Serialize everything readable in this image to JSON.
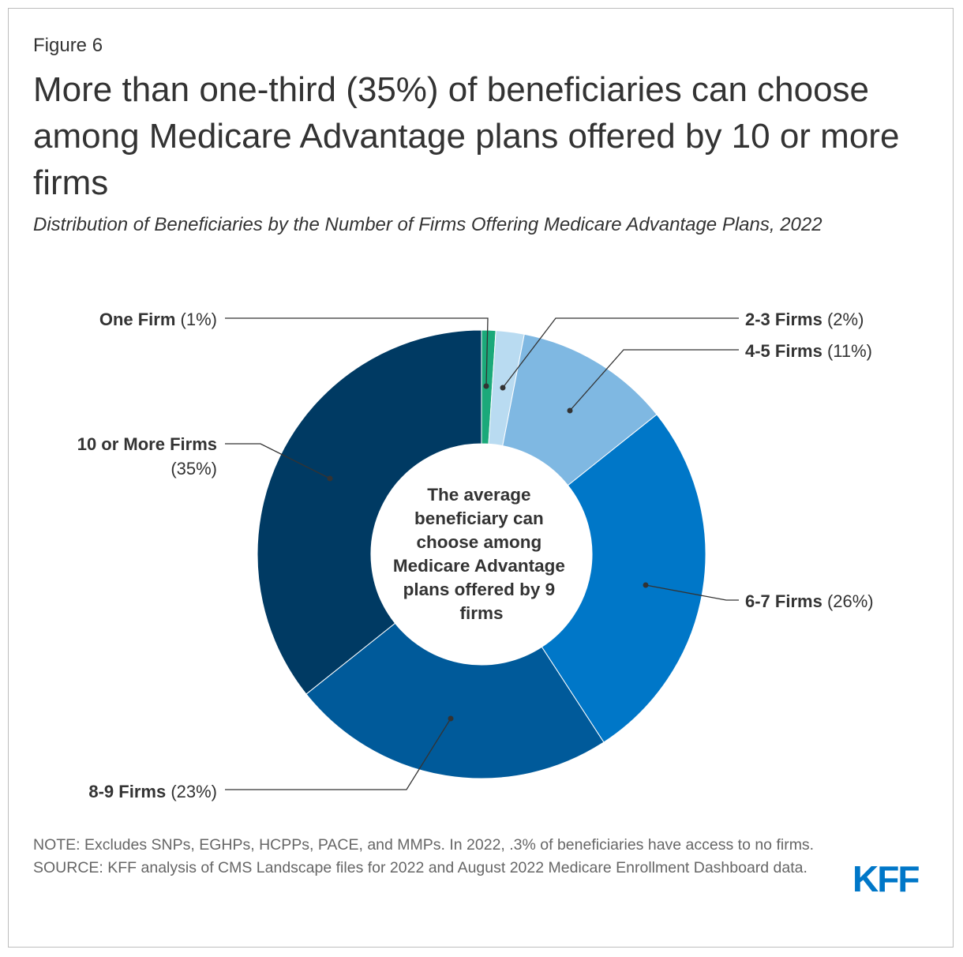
{
  "figure_label": "Figure 6",
  "title": "More than one-third (35%) of beneficiaries can choose among Medicare Advantage plans offered by 10 or more firms",
  "subtitle": "Distribution of Beneficiaries by the Number of Firms Offering Medicare Advantage Plans, 2022",
  "center_text": [
    "The average",
    "beneficiary can",
    "choose among",
    "Medicare Advantage",
    "plans offered by 9",
    "firms"
  ],
  "note": "NOTE: Excludes SNPs, EGHPs, HCPPs, PACE, and MMPs. In 2022, .3% of beneficiaries have access to no firms.",
  "source": "SOURCE: KFF analysis of CMS Landscape files for 2022 and August 2022 Medicare Enrollment Dashboard data.",
  "logo": "KFF",
  "chart_data": {
    "type": "pie",
    "variant": "donut",
    "title": "Distribution of Beneficiaries by the Number of Firms Offering Medicare Advantage Plans, 2022",
    "slices": [
      {
        "name": "One Firm",
        "value_label": "(1%)",
        "value": 1,
        "color": "#1ba97a"
      },
      {
        "name": "2-3 Firms",
        "value_label": "(2%)",
        "value": 2,
        "color": "#b9dbf1"
      },
      {
        "name": "4-5 Firms",
        "value_label": "(11%)",
        "value": 11,
        "color": "#7fb8e2"
      },
      {
        "name": "6-7 Firms",
        "value_label": "(26%)",
        "value": 26,
        "color": "#0077c8"
      },
      {
        "name": "8-9 Firms",
        "value_label": "(23%)",
        "value": 23,
        "color": "#005a9a"
      },
      {
        "name": "10 or More Firms",
        "value_label": "(35%)",
        "value": 35,
        "color": "#003a63"
      }
    ]
  }
}
